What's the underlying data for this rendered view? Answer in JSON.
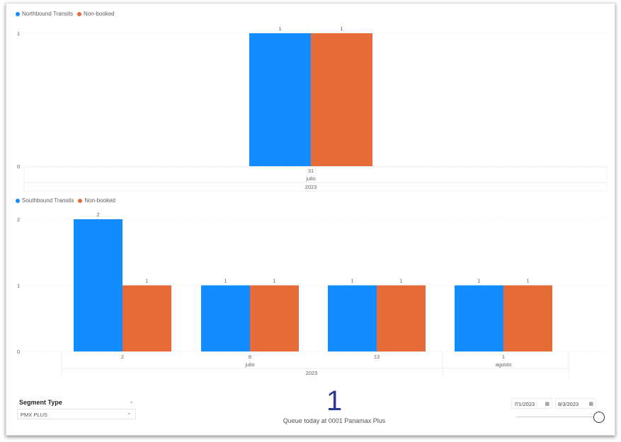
{
  "colors": {
    "blue": "#118dff",
    "orange": "#e66c37"
  },
  "chart_data": [
    {
      "type": "bar",
      "title": "",
      "legend": [
        "Northbound Transits",
        "Non-booked"
      ],
      "legend_position": "top-left",
      "categories": [
        {
          "day": "31",
          "month": "julio",
          "year": "2023"
        }
      ],
      "series": [
        {
          "name": "Northbound Transits",
          "values": [
            1
          ]
        },
        {
          "name": "Non-booked",
          "values": [
            1
          ]
        }
      ],
      "yticks": [
        "0",
        "1"
      ],
      "ylim": [
        0,
        1
      ]
    },
    {
      "type": "bar",
      "title": "",
      "legend": [
        "Southbound Transits",
        "Non-booked"
      ],
      "legend_position": "top-left",
      "categories": [
        {
          "day": "2",
          "month": "julio",
          "year": "2023"
        },
        {
          "day": "8",
          "month": "julio",
          "year": "2023"
        },
        {
          "day": "13",
          "month": "julio",
          "year": "2023"
        },
        {
          "day": "1",
          "month": "agosto",
          "year": "2023"
        }
      ],
      "series": [
        {
          "name": "Southbound Transits",
          "values": [
            2,
            1,
            1,
            1
          ]
        },
        {
          "name": "Non-booked",
          "values": [
            1,
            1,
            1,
            1
          ]
        }
      ],
      "yticks": [
        "0",
        "1",
        "2"
      ],
      "ylim": [
        0,
        2
      ],
      "month_labels": [
        "julio",
        "agosto"
      ],
      "year_label": "2023"
    }
  ],
  "slicer": {
    "title": "Segment Type",
    "value": "PMX PLUS"
  },
  "card": {
    "value": "1",
    "label": "Queue  today at 0001 Panamax Plus"
  },
  "date_range": {
    "start": "7/1/2023",
    "end": "8/3/2023"
  }
}
